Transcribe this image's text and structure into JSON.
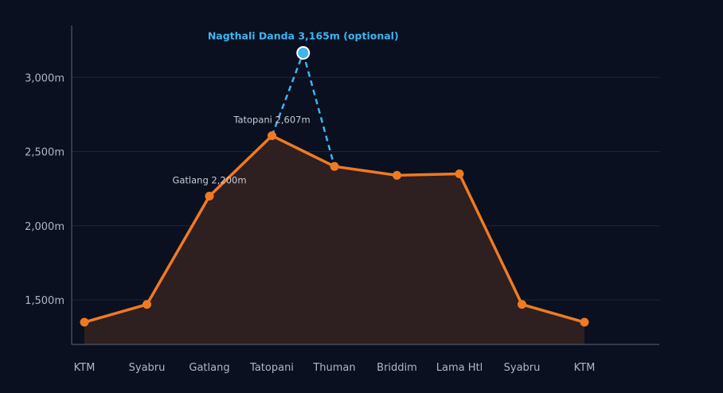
{
  "colors": {
    "background": "#0a1020",
    "main_line": "#f07a22",
    "area_fill": "#2e1f20",
    "side_trip": "#3fb4ee",
    "grid": "#1d2636",
    "axis": "#5b6577"
  },
  "chart_data": {
    "type": "line",
    "title": "",
    "xlabel": "",
    "ylabel": "",
    "ylim": [
      1200,
      3350
    ],
    "y_ticks": [
      1500,
      2000,
      2500,
      3000
    ],
    "y_tick_labels": [
      "1,500m",
      "2,000m",
      "2,500m",
      "3,000m"
    ],
    "grid": true,
    "categories": [
      "KTM",
      "Syabru",
      "Gatlang",
      "Tatopani",
      "Thuman",
      "Briddim",
      "Lama Htl",
      "Syabru",
      "KTM"
    ],
    "series": [
      {
        "values": [
          1350,
          1470,
          2200,
          2607,
          2400,
          2340,
          2350,
          1470,
          1350
        ]
      }
    ],
    "side_trip": {
      "value": 3165,
      "from_index": 3,
      "to_index": 4
    },
    "annotations": [
      {
        "text": "Gatlang 2,200m",
        "index": 2
      },
      {
        "text": "Tatopani 2,607m",
        "index": 3
      },
      {
        "text": "Nagthali Danda 3,165m (optional)",
        "target": "side_trip"
      }
    ]
  }
}
